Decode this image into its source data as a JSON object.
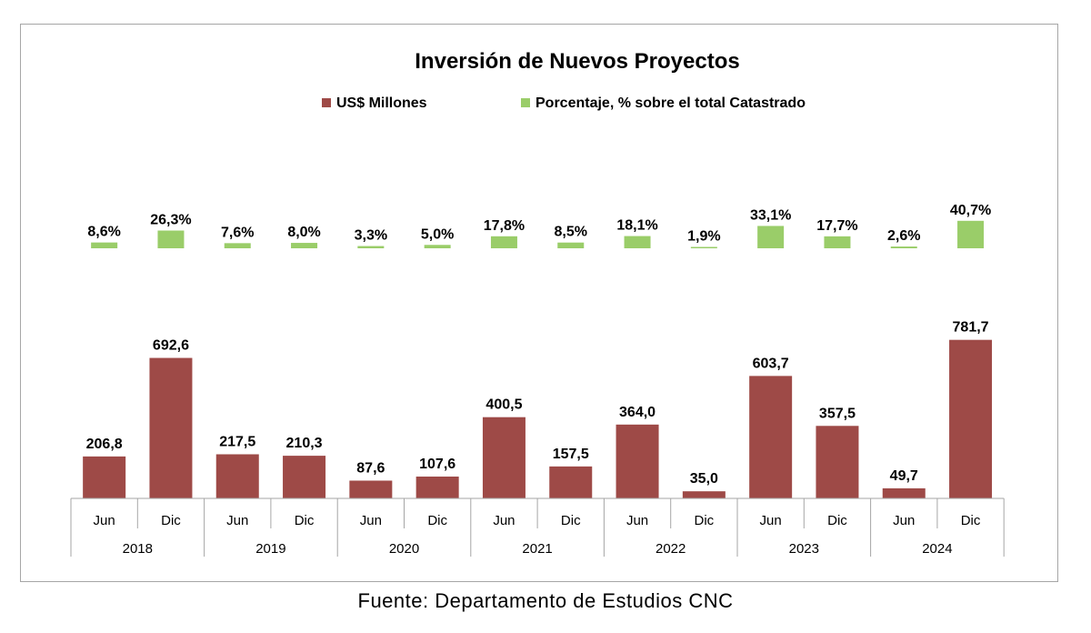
{
  "chart_data": {
    "type": "bar",
    "title": "Inversión de Nuevos Proyectos",
    "categories": [
      "Jun",
      "Dic",
      "Jun",
      "Dic",
      "Jun",
      "Dic",
      "Jun",
      "Dic",
      "Jun",
      "Dic",
      "Jun",
      "Dic",
      "Jun",
      "Dic"
    ],
    "groups": [
      "2018",
      "2019",
      "2020",
      "2021",
      "2022",
      "2023",
      "2024"
    ],
    "legend_placement": "top",
    "series": [
      {
        "name": "US$ Millones",
        "color": "#9e4a47",
        "values": [
          206.8,
          692.6,
          217.5,
          210.3,
          87.6,
          107.6,
          400.5,
          157.5,
          364.0,
          35.0,
          603.7,
          357.5,
          49.7,
          781.7
        ],
        "labels": [
          "206,8",
          "692,6",
          "217,5",
          "210,3",
          "87,6",
          "107,6",
          "400,5",
          "157,5",
          "364,0",
          "35,0",
          "603,7",
          "357,5",
          "49,7",
          "781,7"
        ]
      },
      {
        "name": "Porcentaje, % sobre el total Catastrado",
        "color": "#9acd69",
        "values": [
          8.6,
          26.3,
          7.6,
          8.0,
          3.3,
          5.0,
          17.8,
          8.5,
          18.1,
          1.9,
          33.1,
          17.7,
          2.6,
          40.7
        ],
        "labels": [
          "8,6%",
          "26,3%",
          "7,6%",
          "8,0%",
          "3,3%",
          "5,0%",
          "17,8%",
          "8,5%",
          "18,1%",
          "1,9%",
          "33,1%",
          "17,7%",
          "2,6%",
          "40,7%"
        ]
      }
    ],
    "grid": false
  },
  "source": "Fuente:  Departamento  de Estudios  CNC"
}
